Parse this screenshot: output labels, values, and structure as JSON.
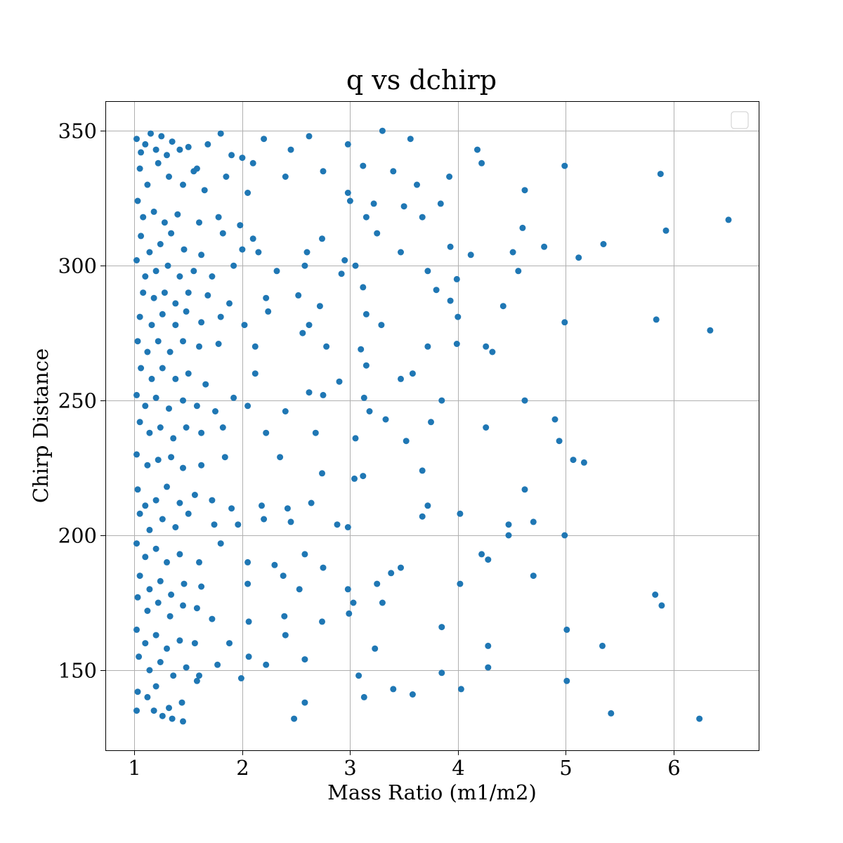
{
  "chart_data": {
    "type": "scatter",
    "title": "q vs dchirp",
    "xlabel": "Mass Ratio (m1/m2)",
    "ylabel": "Chirp Distance",
    "xlim": [
      0.73,
      6.79
    ],
    "ylim": [
      120.3,
      361.0
    ],
    "x_ticks": [
      1,
      2,
      3,
      4,
      5,
      6
    ],
    "y_ticks": [
      150,
      200,
      250,
      300,
      350
    ],
    "grid": true,
    "legend": "top-right (empty)",
    "marker_color": "#1f77b4",
    "points": [
      [
        1.02,
        347
      ],
      [
        1.06,
        342
      ],
      [
        1.1,
        345
      ],
      [
        1.15,
        349
      ],
      [
        1.2,
        343
      ],
      [
        1.25,
        348
      ],
      [
        1.3,
        341
      ],
      [
        1.35,
        346
      ],
      [
        1.42,
        343
      ],
      [
        1.5,
        344
      ],
      [
        1.58,
        336
      ],
      [
        1.68,
        345
      ],
      [
        1.8,
        349
      ],
      [
        1.9,
        341
      ],
      [
        2.0,
        340
      ],
      [
        2.1,
        338
      ],
      [
        2.2,
        347
      ],
      [
        2.45,
        343
      ],
      [
        2.62,
        348
      ],
      [
        2.98,
        345
      ],
      [
        3.3,
        350
      ],
      [
        3.56,
        347
      ],
      [
        4.18,
        343
      ],
      [
        1.05,
        336
      ],
      [
        1.12,
        330
      ],
      [
        1.22,
        338
      ],
      [
        1.32,
        333
      ],
      [
        1.45,
        330
      ],
      [
        1.55,
        335
      ],
      [
        1.65,
        328
      ],
      [
        1.85,
        333
      ],
      [
        2.05,
        327
      ],
      [
        2.4,
        333
      ],
      [
        2.75,
        335
      ],
      [
        2.98,
        327
      ],
      [
        3.12,
        337
      ],
      [
        3.4,
        335
      ],
      [
        3.62,
        330
      ],
      [
        3.92,
        333
      ],
      [
        4.22,
        338
      ],
      [
        4.99,
        337
      ],
      [
        5.88,
        334
      ],
      [
        3.0,
        324
      ],
      [
        3.22,
        323
      ],
      [
        3.5,
        322
      ],
      [
        3.84,
        323
      ],
      [
        4.62,
        328
      ],
      [
        1.03,
        324
      ],
      [
        1.08,
        318
      ],
      [
        1.18,
        320
      ],
      [
        1.28,
        316
      ],
      [
        1.4,
        319
      ],
      [
        1.6,
        316
      ],
      [
        1.78,
        318
      ],
      [
        1.98,
        315
      ],
      [
        2.1,
        310
      ],
      [
        3.15,
        318
      ],
      [
        3.25,
        312
      ],
      [
        3.67,
        318
      ],
      [
        4.6,
        314
      ],
      [
        5.93,
        313
      ],
      [
        6.51,
        317
      ],
      [
        1.06,
        311
      ],
      [
        1.14,
        305
      ],
      [
        1.24,
        308
      ],
      [
        1.34,
        312
      ],
      [
        1.46,
        306
      ],
      [
        1.62,
        304
      ],
      [
        1.82,
        312
      ],
      [
        2.0,
        306
      ],
      [
        2.15,
        305
      ],
      [
        2.6,
        305
      ],
      [
        2.74,
        310
      ],
      [
        3.47,
        305
      ],
      [
        3.93,
        307
      ],
      [
        4.12,
        304
      ],
      [
        4.51,
        305
      ],
      [
        4.8,
        307
      ],
      [
        5.12,
        303
      ],
      [
        5.35,
        308
      ],
      [
        1.02,
        302
      ],
      [
        1.1,
        296
      ],
      [
        1.2,
        298
      ],
      [
        1.31,
        300
      ],
      [
        1.42,
        296
      ],
      [
        1.55,
        298
      ],
      [
        1.72,
        296
      ],
      [
        1.92,
        300
      ],
      [
        2.32,
        298
      ],
      [
        2.58,
        300
      ],
      [
        2.95,
        302
      ],
      [
        3.05,
        300
      ],
      [
        3.72,
        298
      ],
      [
        4.56,
        298
      ],
      [
        1.08,
        290
      ],
      [
        1.18,
        288
      ],
      [
        1.28,
        290
      ],
      [
        1.38,
        286
      ],
      [
        1.5,
        290
      ],
      [
        1.68,
        289
      ],
      [
        1.88,
        286
      ],
      [
        2.22,
        288
      ],
      [
        2.52,
        289
      ],
      [
        2.92,
        297
      ],
      [
        3.12,
        292
      ],
      [
        3.8,
        291
      ],
      [
        3.93,
        287
      ],
      [
        3.99,
        295
      ],
      [
        1.05,
        281
      ],
      [
        1.16,
        278
      ],
      [
        1.26,
        282
      ],
      [
        1.38,
        278
      ],
      [
        1.48,
        283
      ],
      [
        1.62,
        279
      ],
      [
        1.8,
        281
      ],
      [
        2.02,
        278
      ],
      [
        2.24,
        283
      ],
      [
        2.62,
        278
      ],
      [
        2.72,
        285
      ],
      [
        3.15,
        282
      ],
      [
        3.29,
        278
      ],
      [
        4.0,
        281
      ],
      [
        4.42,
        285
      ],
      [
        4.99,
        279
      ],
      [
        5.84,
        280
      ],
      [
        6.34,
        276
      ],
      [
        1.03,
        272
      ],
      [
        1.12,
        268
      ],
      [
        1.22,
        272
      ],
      [
        1.33,
        268
      ],
      [
        1.45,
        272
      ],
      [
        1.6,
        270
      ],
      [
        1.78,
        271
      ],
      [
        2.12,
        270
      ],
      [
        2.56,
        275
      ],
      [
        2.78,
        270
      ],
      [
        3.1,
        269
      ],
      [
        3.72,
        270
      ],
      [
        3.99,
        271
      ],
      [
        4.26,
        270
      ],
      [
        4.32,
        268
      ],
      [
        1.06,
        262
      ],
      [
        1.16,
        258
      ],
      [
        1.26,
        262
      ],
      [
        1.38,
        258
      ],
      [
        1.5,
        260
      ],
      [
        1.66,
        256
      ],
      [
        2.12,
        260
      ],
      [
        2.62,
        253
      ],
      [
        2.9,
        257
      ],
      [
        3.15,
        263
      ],
      [
        3.47,
        258
      ],
      [
        3.58,
        260
      ],
      [
        1.02,
        252
      ],
      [
        1.1,
        248
      ],
      [
        1.2,
        251
      ],
      [
        1.32,
        247
      ],
      [
        1.45,
        250
      ],
      [
        1.58,
        248
      ],
      [
        1.75,
        246
      ],
      [
        1.92,
        251
      ],
      [
        2.05,
        248
      ],
      [
        2.4,
        246
      ],
      [
        2.75,
        252
      ],
      [
        3.13,
        251
      ],
      [
        3.18,
        246
      ],
      [
        3.33,
        243
      ],
      [
        3.85,
        250
      ],
      [
        4.62,
        250
      ],
      [
        4.9,
        243
      ],
      [
        1.05,
        242
      ],
      [
        1.14,
        238
      ],
      [
        1.24,
        240
      ],
      [
        1.36,
        236
      ],
      [
        1.48,
        240
      ],
      [
        1.62,
        238
      ],
      [
        1.82,
        240
      ],
      [
        2.22,
        238
      ],
      [
        2.68,
        238
      ],
      [
        3.05,
        236
      ],
      [
        3.52,
        235
      ],
      [
        3.75,
        242
      ],
      [
        4.26,
        240
      ],
      [
        4.94,
        235
      ],
      [
        1.02,
        230
      ],
      [
        1.12,
        226
      ],
      [
        1.22,
        228
      ],
      [
        1.34,
        229
      ],
      [
        1.45,
        225
      ],
      [
        1.62,
        226
      ],
      [
        1.84,
        229
      ],
      [
        2.35,
        229
      ],
      [
        2.74,
        223
      ],
      [
        3.04,
        221
      ],
      [
        3.67,
        224
      ],
      [
        5.07,
        228
      ],
      [
        5.17,
        227
      ],
      [
        1.03,
        217
      ],
      [
        1.1,
        211
      ],
      [
        1.2,
        213
      ],
      [
        1.3,
        218
      ],
      [
        1.42,
        212
      ],
      [
        1.56,
        215
      ],
      [
        1.72,
        213
      ],
      [
        1.9,
        210
      ],
      [
        2.18,
        211
      ],
      [
        2.42,
        210
      ],
      [
        2.64,
        212
      ],
      [
        3.12,
        222
      ],
      [
        3.72,
        211
      ],
      [
        4.62,
        217
      ],
      [
        1.05,
        208
      ],
      [
        1.14,
        202
      ],
      [
        1.26,
        206
      ],
      [
        1.38,
        203
      ],
      [
        1.5,
        208
      ],
      [
        1.74,
        204
      ],
      [
        1.96,
        204
      ],
      [
        2.2,
        206
      ],
      [
        2.45,
        205
      ],
      [
        2.88,
        204
      ],
      [
        2.98,
        203
      ],
      [
        3.67,
        207
      ],
      [
        4.02,
        208
      ],
      [
        4.47,
        204
      ],
      [
        4.7,
        205
      ],
      [
        1.02,
        197
      ],
      [
        1.1,
        192
      ],
      [
        1.2,
        195
      ],
      [
        1.3,
        190
      ],
      [
        1.42,
        193
      ],
      [
        1.6,
        190
      ],
      [
        1.8,
        197
      ],
      [
        2.05,
        190
      ],
      [
        2.3,
        189
      ],
      [
        2.58,
        193
      ],
      [
        2.75,
        188
      ],
      [
        3.47,
        188
      ],
      [
        3.38,
        186
      ],
      [
        4.22,
        193
      ],
      [
        4.28,
        191
      ],
      [
        4.47,
        200
      ],
      [
        4.99,
        200
      ],
      [
        1.05,
        185
      ],
      [
        1.14,
        180
      ],
      [
        1.24,
        183
      ],
      [
        1.34,
        178
      ],
      [
        1.46,
        182
      ],
      [
        1.62,
        181
      ],
      [
        2.05,
        182
      ],
      [
        2.38,
        185
      ],
      [
        2.53,
        180
      ],
      [
        2.98,
        180
      ],
      [
        3.25,
        182
      ],
      [
        4.02,
        182
      ],
      [
        4.7,
        185
      ],
      [
        1.03,
        177
      ],
      [
        1.12,
        172
      ],
      [
        1.22,
        175
      ],
      [
        1.33,
        170
      ],
      [
        1.45,
        174
      ],
      [
        1.58,
        173
      ],
      [
        1.72,
        169
      ],
      [
        2.06,
        168
      ],
      [
        2.39,
        170
      ],
      [
        2.74,
        168
      ],
      [
        2.99,
        171
      ],
      [
        3.03,
        175
      ],
      [
        3.3,
        175
      ],
      [
        5.83,
        178
      ],
      [
        5.89,
        174
      ],
      [
        1.02,
        165
      ],
      [
        1.1,
        160
      ],
      [
        1.2,
        163
      ],
      [
        1.3,
        158
      ],
      [
        1.42,
        161
      ],
      [
        1.56,
        160
      ],
      [
        1.88,
        160
      ],
      [
        2.4,
        163
      ],
      [
        3.85,
        166
      ],
      [
        4.28,
        159
      ],
      [
        5.01,
        165
      ],
      [
        5.34,
        159
      ],
      [
        1.04,
        155
      ],
      [
        1.14,
        150
      ],
      [
        1.24,
        153
      ],
      [
        1.36,
        148
      ],
      [
        1.48,
        151
      ],
      [
        1.6,
        148
      ],
      [
        1.77,
        152
      ],
      [
        2.06,
        155
      ],
      [
        2.22,
        152
      ],
      [
        2.58,
        154
      ],
      [
        3.08,
        148
      ],
      [
        3.23,
        158
      ],
      [
        3.85,
        149
      ],
      [
        4.28,
        151
      ],
      [
        1.03,
        142
      ],
      [
        1.12,
        140
      ],
      [
        1.2,
        144
      ],
      [
        1.32,
        136
      ],
      [
        1.44,
        138
      ],
      [
        1.58,
        146
      ],
      [
        1.99,
        147
      ],
      [
        2.58,
        138
      ],
      [
        3.13,
        140
      ],
      [
        3.4,
        143
      ],
      [
        3.58,
        141
      ],
      [
        4.03,
        143
      ],
      [
        5.01,
        146
      ],
      [
        1.02,
        135
      ],
      [
        1.18,
        135
      ],
      [
        1.26,
        133
      ],
      [
        1.35,
        132
      ],
      [
        1.45,
        131
      ],
      [
        2.48,
        132
      ],
      [
        5.42,
        134
      ],
      [
        6.24,
        132
      ]
    ]
  }
}
